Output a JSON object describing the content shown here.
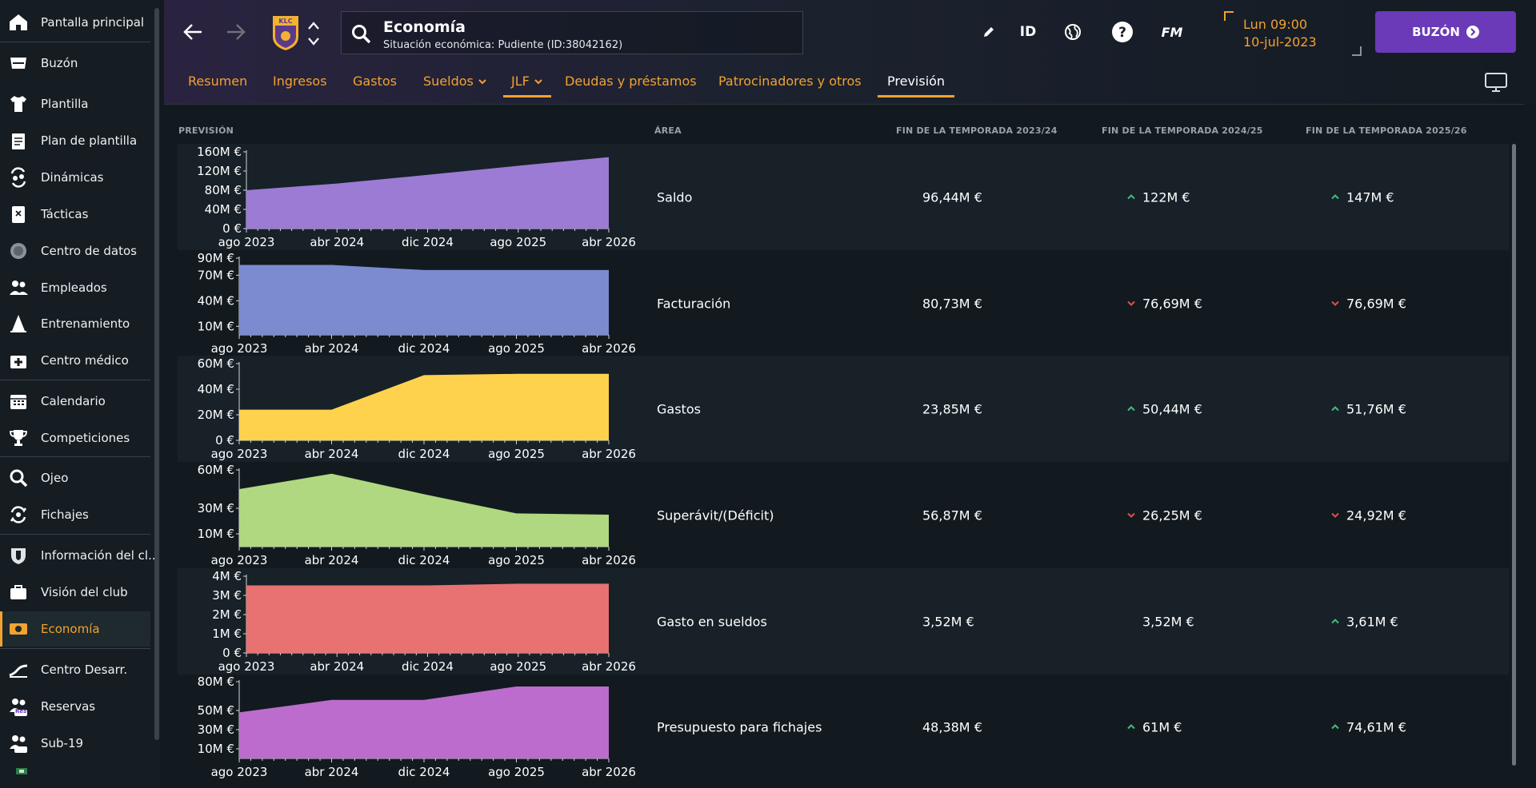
{
  "sidebar": {
    "items": [
      {
        "label": "Pantalla principal",
        "icon": "home-icon"
      },
      {
        "label": "Buzón",
        "icon": "inbox-icon"
      },
      {
        "label": "Plantilla",
        "icon": "shirt-icon"
      },
      {
        "label": "Plan de plantilla",
        "icon": "clipboard-icon"
      },
      {
        "label": "Dinámicas",
        "icon": "dynamics-icon"
      },
      {
        "label": "Tácticas",
        "icon": "tactics-board-icon"
      },
      {
        "label": "Centro de datos",
        "icon": "data-hub-icon"
      },
      {
        "label": "Empleados",
        "icon": "staff-icon"
      },
      {
        "label": "Entrenamiento",
        "icon": "cone-icon"
      },
      {
        "label": "Centro médico",
        "icon": "medical-kit-icon"
      },
      {
        "label": "Calendario",
        "icon": "calendar-icon"
      },
      {
        "label": "Competiciones",
        "icon": "trophy-icon"
      },
      {
        "label": "Ojeo",
        "icon": "magnifier-icon"
      },
      {
        "label": "Fichajes",
        "icon": "transfer-icon"
      },
      {
        "label": "Información del cl...",
        "icon": "shield-icon"
      },
      {
        "label": "Visión del club",
        "icon": "briefcase-icon"
      },
      {
        "label": "Economía",
        "icon": "money-icon"
      },
      {
        "label": "Centro Desarr.",
        "icon": "development-icon"
      },
      {
        "label": "Reservas",
        "icon": "reserves-icon",
        "badge": "Res"
      },
      {
        "label": "Sub-19",
        "icon": "u19-icon"
      }
    ],
    "active_index": 16
  },
  "header": {
    "search_title": "Economía",
    "search_subtitle": "Situación económica: Pudiente (ID:38042162)",
    "club_badge_text": "KLC",
    "id_label": "ID",
    "fm_label": "FM",
    "time": "Lun 09:00",
    "date": "10-jul-2023",
    "inbox_label": "BUZÓN"
  },
  "tabs": [
    {
      "label": "Resumen"
    },
    {
      "label": "Ingresos"
    },
    {
      "label": "Gastos"
    },
    {
      "label": "Sueldos",
      "dropdown": true
    },
    {
      "label": "JLF",
      "dropdown": true
    },
    {
      "label": "Deudas y préstamos"
    },
    {
      "label": "Patrocinadores y otros"
    },
    {
      "label": "Previsión"
    }
  ],
  "active_tab_index": 7,
  "table": {
    "headers": [
      "PREVISIÓN",
      "ÁREA",
      "FIN DE LA TEMPORADA 2023/24",
      "FIN DE LA TEMPORADA 2024/25",
      "FIN DE LA TEMPORADA 2025/26"
    ],
    "x_labels": [
      "ago 2023",
      "abr 2024",
      "dic 2024",
      "ago 2025",
      "abr 2026"
    ],
    "rows": [
      {
        "area": "Saldo",
        "v1": "96,44M €",
        "v2": "122M €",
        "v2_trend": "up",
        "v3": "147M €",
        "v3_trend": "up"
      },
      {
        "area": "Facturación",
        "v1": "80,73M €",
        "v2": "76,69M €",
        "v2_trend": "down",
        "v3": "76,69M €",
        "v3_trend": "down"
      },
      {
        "area": "Gastos",
        "v1": "23,85M €",
        "v2": "50,44M €",
        "v2_trend": "up",
        "v3": "51,76M €",
        "v3_trend": "up"
      },
      {
        "area": "Superávit/(Déficit)",
        "v1": "56,87M €",
        "v2": "26,25M €",
        "v2_trend": "down",
        "v3": "24,92M €",
        "v3_trend": "down"
      },
      {
        "area": "Gasto en sueldos",
        "v1": "3,52M €",
        "v2": "3,52M €",
        "v2_trend": "none",
        "v3": "3,61M €",
        "v3_trend": "up"
      },
      {
        "area": "Presupuesto para fichajes",
        "v1": "48,38M €",
        "v2": "61M €",
        "v2_trend": "up",
        "v3": "74,61M €",
        "v3_trend": "up"
      }
    ]
  },
  "colors": {
    "accent": "#f2a231",
    "inbox": "#6a3ab8",
    "up": "#3fbf7f",
    "down": "#e0504a"
  },
  "chart_data": [
    {
      "type": "area",
      "title": "Saldo",
      "x": [
        "ago 2023",
        "abr 2024",
        "dic 2024",
        "ago 2025",
        "abr 2026"
      ],
      "series": [
        {
          "values": [
            80,
            94,
            112,
            131,
            149
          ]
        }
      ],
      "y_ticks": [
        "0 €",
        "40M €",
        "80M €",
        "120M €",
        "160M €"
      ],
      "ylim": [
        0,
        160
      ],
      "color": "#9b7bd4"
    },
    {
      "type": "area",
      "title": "Facturación",
      "x": [
        "ago 2023",
        "abr 2024",
        "dic 2024",
        "ago 2025",
        "abr 2026"
      ],
      "series": [
        {
          "values": [
            82,
            82,
            76,
            76,
            76
          ]
        }
      ],
      "y_ticks": [
        "10M €",
        "40M €",
        "70M €",
        "90M €"
      ],
      "ylim": [
        0,
        90
      ],
      "color": "#7b8bd0"
    },
    {
      "type": "area",
      "title": "Gastos",
      "x": [
        "ago 2023",
        "abr 2024",
        "dic 2024",
        "ago 2025",
        "abr 2026"
      ],
      "series": [
        {
          "values": [
            24,
            24,
            51,
            52,
            52
          ]
        }
      ],
      "y_ticks": [
        "0 €",
        "20M €",
        "40M €",
        "60M €"
      ],
      "ylim": [
        0,
        60
      ],
      "color": "#ffd24d"
    },
    {
      "type": "area",
      "title": "Superávit/(Déficit)",
      "x": [
        "ago 2023",
        "abr 2024",
        "dic 2024",
        "ago 2025",
        "abr 2026"
      ],
      "series": [
        {
          "values": [
            45,
            57,
            41,
            26,
            25
          ]
        }
      ],
      "y_ticks": [
        "10M €",
        "30M €",
        "60M €"
      ],
      "ylim": [
        0,
        60
      ],
      "color": "#b0d880"
    },
    {
      "type": "area",
      "title": "Gasto en sueldos",
      "x": [
        "ago 2023",
        "abr 2024",
        "dic 2024",
        "ago 2025",
        "abr 2026"
      ],
      "series": [
        {
          "values": [
            3.52,
            3.52,
            3.52,
            3.61,
            3.61
          ]
        }
      ],
      "y_ticks": [
        "0 €",
        "1M €",
        "2M €",
        "3M €",
        "4M €"
      ],
      "ylim": [
        0,
        4
      ],
      "color": "#e87272"
    },
    {
      "type": "area",
      "title": "Presupuesto para fichajes",
      "x": [
        "ago 2023",
        "abr 2024",
        "dic 2024",
        "ago 2025",
        "abr 2026"
      ],
      "series": [
        {
          "values": [
            48,
            61,
            61,
            75,
            75
          ]
        }
      ],
      "y_ticks": [
        "10M €",
        "30M €",
        "50M €",
        "80M €"
      ],
      "ylim": [
        0,
        80
      ],
      "color": "#bb6ccc"
    }
  ]
}
